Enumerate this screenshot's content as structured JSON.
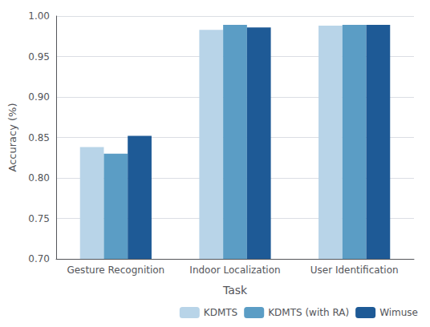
{
  "chart_data": {
    "type": "bar",
    "categories": [
      "Gesture Recognition",
      "Indoor Localization",
      "User Identification"
    ],
    "series": [
      {
        "name": "KDMTS",
        "color": "#b8d4e8",
        "values": [
          0.838,
          0.983,
          0.988
        ]
      },
      {
        "name": "KDMTS (with RA)",
        "color": "#5b9dc5",
        "values": [
          0.83,
          0.989,
          0.989
        ]
      },
      {
        "name": "Wimuse",
        "color": "#1e5a96",
        "values": [
          0.852,
          0.986,
          0.989
        ]
      }
    ],
    "xlabel": "Task",
    "ylabel": "Accuracy (%)",
    "ylim": [
      0.7,
      1.0
    ],
    "yticks": [
      {
        "value": 0.7,
        "label": "0.70"
      },
      0.75,
      {
        "value": 0.8,
        "label": "0.80"
      },
      0.85,
      {
        "value": 0.9,
        "label": "0.90"
      },
      0.95,
      {
        "value": 1.0,
        "label": "1.00"
      }
    ],
    "grid": true,
    "legend": "lower right"
  }
}
